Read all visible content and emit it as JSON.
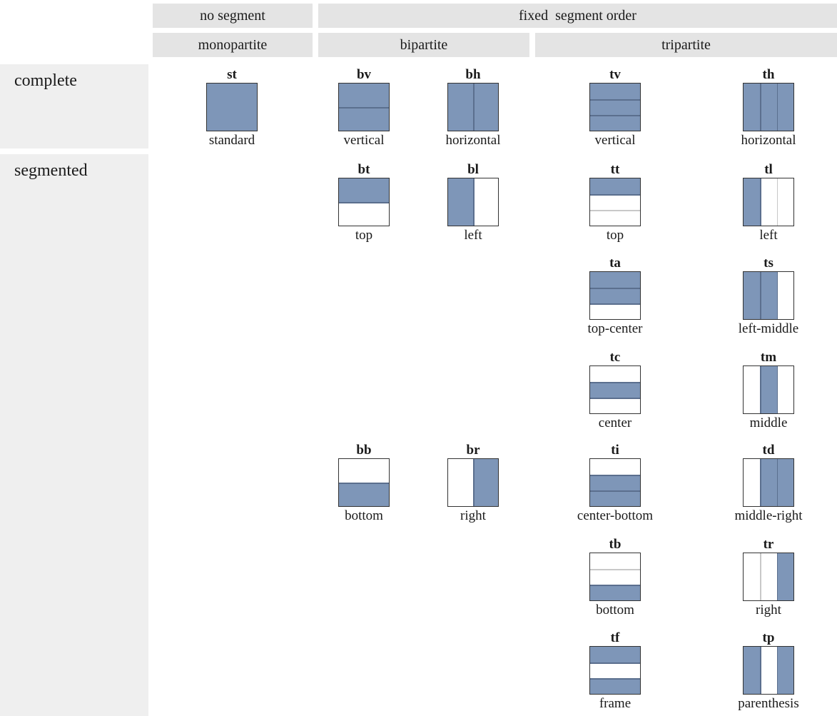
{
  "headers": {
    "no_segment": "no segment",
    "fixed_segment_order": "fixed  segment order",
    "monopartite": "monopartite",
    "bipartite": "bipartite",
    "tripartite": "tripartite"
  },
  "rows": {
    "complete": "complete",
    "segmented": "segmented"
  },
  "colors": {
    "fill": "#7e96b8",
    "dark_line": "#5b6f8e",
    "light_line": "#c8c8c8",
    "border": "#333333"
  },
  "cells": [
    {
      "code": "st",
      "name": "standard",
      "orientation": "v",
      "parts": 1,
      "filled": [
        0
      ]
    },
    {
      "code": "bv",
      "name": "vertical",
      "orientation": "v",
      "parts": 2,
      "filled": [
        0,
        1
      ]
    },
    {
      "code": "bh",
      "name": "horizontal",
      "orientation": "h",
      "parts": 2,
      "filled": [
        0,
        1
      ]
    },
    {
      "code": "tv",
      "name": "vertical",
      "orientation": "v",
      "parts": 3,
      "filled": [
        0,
        1,
        2
      ]
    },
    {
      "code": "th",
      "name": "horizontal",
      "orientation": "h",
      "parts": 3,
      "filled": [
        0,
        1,
        2
      ]
    },
    {
      "code": "bt",
      "name": "top",
      "orientation": "v",
      "parts": 2,
      "filled": [
        0
      ]
    },
    {
      "code": "bl",
      "name": "left",
      "orientation": "h",
      "parts": 2,
      "filled": [
        0
      ]
    },
    {
      "code": "tt",
      "name": "top",
      "orientation": "v",
      "parts": 3,
      "filled": [
        0
      ]
    },
    {
      "code": "tl",
      "name": "left",
      "orientation": "h",
      "parts": 3,
      "filled": [
        0
      ]
    },
    {
      "code": "ta",
      "name": "top-center",
      "orientation": "v",
      "parts": 3,
      "filled": [
        0,
        1
      ]
    },
    {
      "code": "ts",
      "name": "left-middle",
      "orientation": "h",
      "parts": 3,
      "filled": [
        0,
        1
      ]
    },
    {
      "code": "tc",
      "name": "center",
      "orientation": "v",
      "parts": 3,
      "filled": [
        1
      ]
    },
    {
      "code": "tm",
      "name": "middle",
      "orientation": "h",
      "parts": 3,
      "filled": [
        1
      ]
    },
    {
      "code": "bb",
      "name": "bottom",
      "orientation": "v",
      "parts": 2,
      "filled": [
        1
      ]
    },
    {
      "code": "br",
      "name": "right",
      "orientation": "h",
      "parts": 2,
      "filled": [
        1
      ]
    },
    {
      "code": "ti",
      "name": "center-bottom",
      "orientation": "v",
      "parts": 3,
      "filled": [
        1,
        2
      ]
    },
    {
      "code": "td",
      "name": "middle-right",
      "orientation": "h",
      "parts": 3,
      "filled": [
        1,
        2
      ]
    },
    {
      "code": "tb",
      "name": "bottom",
      "orientation": "v",
      "parts": 3,
      "filled": [
        2
      ]
    },
    {
      "code": "tr",
      "name": "right",
      "orientation": "h",
      "parts": 3,
      "filled": [
        2
      ]
    },
    {
      "code": "tf",
      "name": "frame",
      "orientation": "v",
      "parts": 3,
      "filled": [
        0,
        2
      ]
    },
    {
      "code": "tp",
      "name": "parenthesis",
      "orientation": "h",
      "parts": 3,
      "filled": [
        0,
        2
      ]
    }
  ]
}
